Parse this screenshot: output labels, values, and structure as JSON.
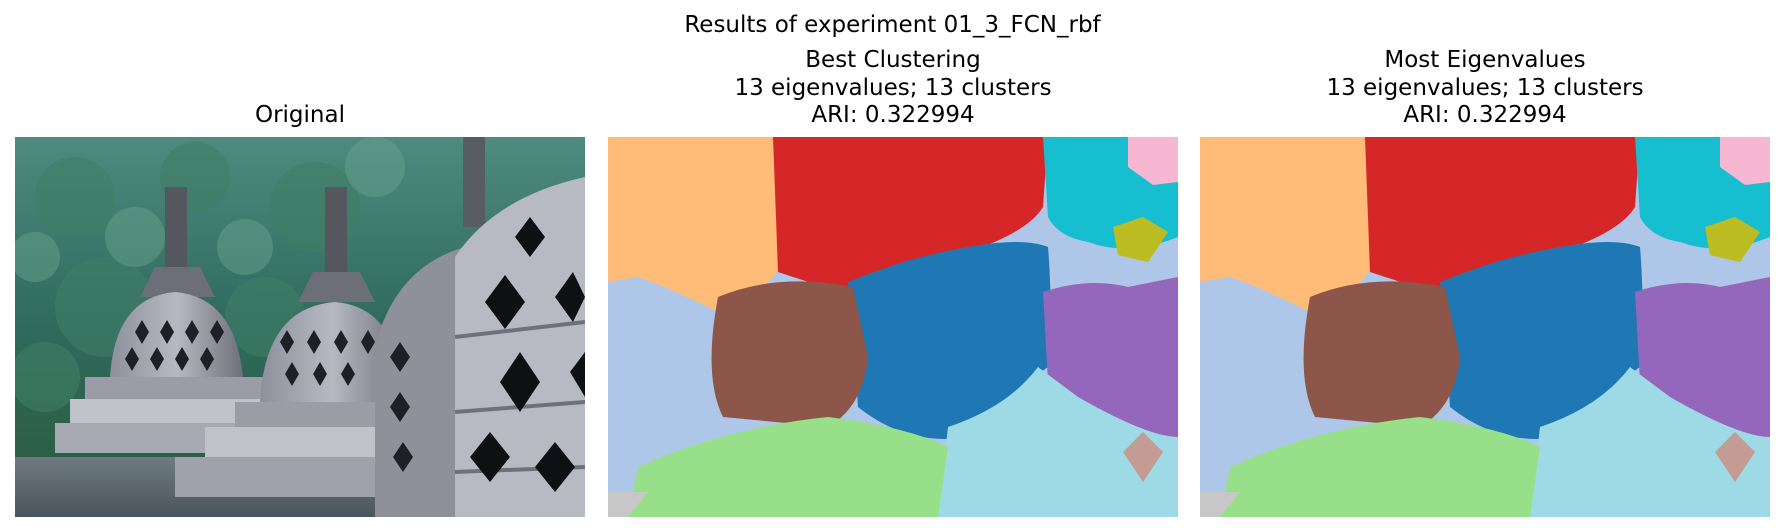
{
  "figure": {
    "suptitle": "Results of experiment 01_3_FCN_rbf"
  },
  "panels": [
    {
      "id": "original",
      "title": "Original",
      "kind": "photo",
      "subject": "stone stupas with diamond-shaped openings in front of forested hills"
    },
    {
      "id": "best",
      "title": "Best Clustering\n13 eigenvalues; 13 clusters\nARI: 0.322994",
      "kind": "segmentation"
    },
    {
      "id": "most",
      "title": "Most Eigenvalues\n13 eigenvalues; 13 clusters\nARI: 0.322994",
      "kind": "segmentation"
    }
  ],
  "colors": {
    "orange": "#ffbb78",
    "red": "#d62728",
    "cyan": "#17becf",
    "pink": "#f7b6d2",
    "olive": "#bcbd22",
    "light_blue": "#aec7e8",
    "brown": "#8c564b",
    "blue": "#1f77b4",
    "purple": "#9467bd",
    "light_cyan": "#9edae5",
    "light_green": "#98df8a",
    "tan": "#c49c94",
    "gray": "#c7c7c7"
  }
}
